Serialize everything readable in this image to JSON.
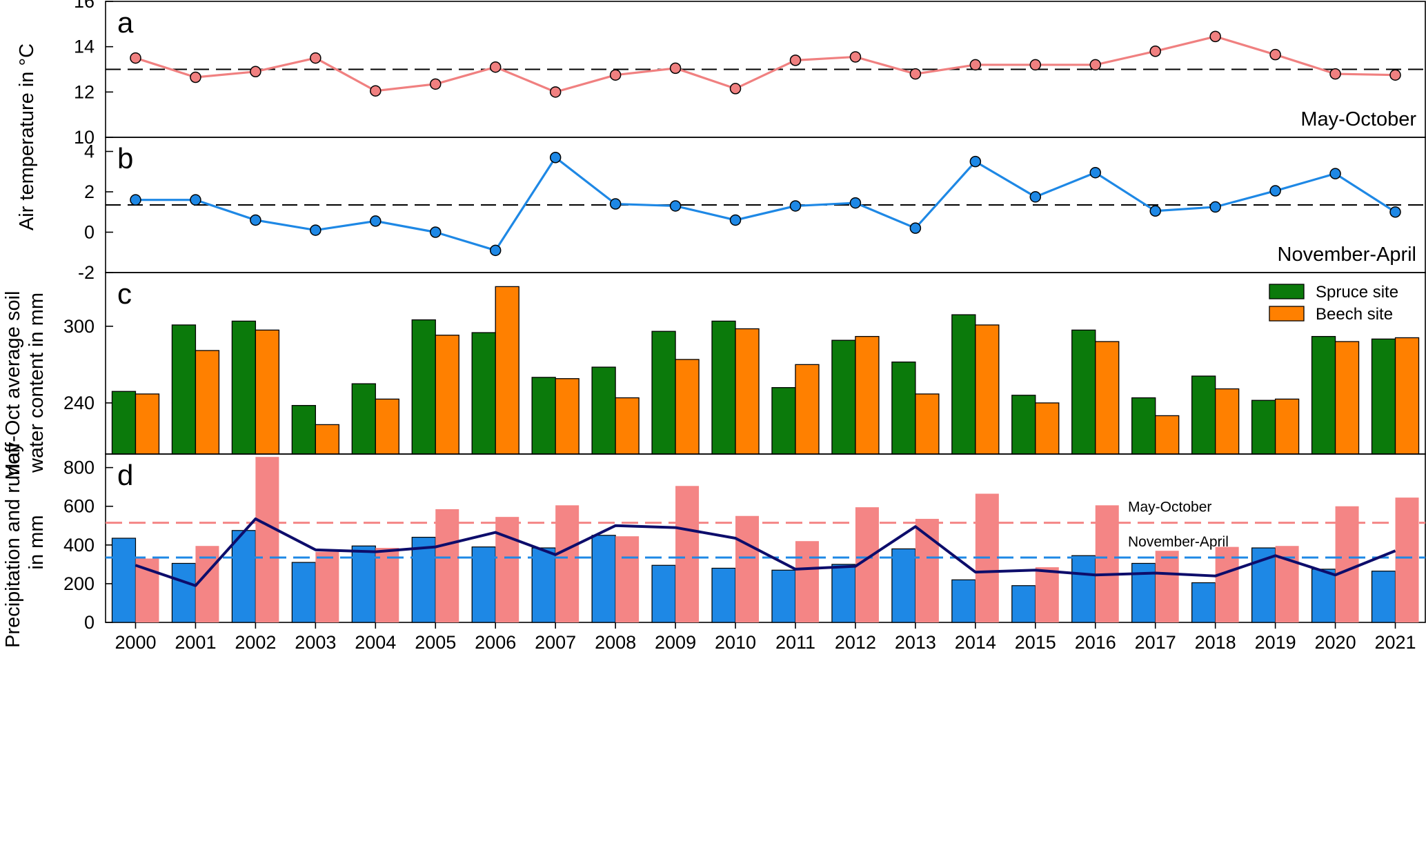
{
  "years": [
    "2000",
    "2001",
    "2002",
    "2003",
    "2004",
    "2005",
    "2006",
    "2007",
    "2008",
    "2009",
    "2010",
    "2011",
    "2012",
    "2013",
    "2014",
    "2015",
    "2016",
    "2017",
    "2018",
    "2019",
    "2020",
    "2021"
  ],
  "y_axis_title_ab": "Air temperature in °C",
  "chart_data": [
    {
      "panel": "a",
      "type": "line",
      "annotation": "May-October",
      "ylim": [
        10,
        16
      ],
      "yticks": [
        "10",
        "12",
        "14",
        "16"
      ],
      "color": "#f08080",
      "reference_line": 13.0,
      "series": [
        {
          "values": [
            13.5,
            12.65,
            12.9,
            13.5,
            12.05,
            12.35,
            13.1,
            12.0,
            12.75,
            13.05,
            12.15,
            13.4,
            13.55,
            12.8,
            13.2,
            13.2,
            13.2,
            13.8,
            14.45,
            13.65,
            12.8,
            12.75
          ]
        }
      ]
    },
    {
      "panel": "b",
      "type": "line",
      "annotation": "November-April",
      "ylim": [
        -2,
        4.7
      ],
      "yticks": [
        "-2",
        "0",
        "2",
        "4"
      ],
      "color": "#1e88e5",
      "reference_line": 1.35,
      "series": [
        {
          "values": [
            1.6,
            1.6,
            0.6,
            0.1,
            0.55,
            0.0,
            -0.9,
            3.7,
            1.4,
            1.3,
            0.6,
            1.3,
            1.45,
            0.2,
            3.5,
            1.75,
            2.95,
            1.05,
            1.25,
            2.05,
            2.9,
            1.0
          ]
        }
      ]
    },
    {
      "panel": "c",
      "type": "bar",
      "ylabel": "May-Oct average soil water content in mm",
      "ylabel_lines": [
        "May-Oct average soil",
        "water content in mm"
      ],
      "ylim": [
        200,
        342
      ],
      "yticks": [
        "240",
        "300"
      ],
      "legend_position": "top-right",
      "series": [
        {
          "name": "Spruce site",
          "color": "#0b7a0b",
          "values": [
            249,
            301,
            304,
            238,
            255,
            305,
            295,
            260,
            268,
            296,
            304,
            252,
            289,
            272,
            309,
            246,
            297,
            244,
            261,
            242,
            292,
            290
          ]
        },
        {
          "name": "Beech site",
          "color": "#ff8000",
          "values": [
            247,
            281,
            297,
            223,
            243,
            293,
            331,
            259,
            244,
            274,
            298,
            270,
            292,
            247,
            301,
            240,
            288,
            230,
            251,
            243,
            288,
            291
          ]
        }
      ]
    },
    {
      "panel": "d",
      "type": "bar",
      "ylabel": "Precipitation and runoff in mm",
      "ylabel_lines": [
        "Precipitation and runoff",
        "in mm"
      ],
      "ylim": [
        0,
        870
      ],
      "yticks": [
        "0",
        "200",
        "400",
        "600",
        "800"
      ],
      "series": [
        {
          "color": "#1e88e5",
          "values": [
            435,
            305,
            475,
            310,
            395,
            440,
            390,
            385,
            450,
            295,
            280,
            270,
            300,
            380,
            220,
            190,
            345,
            305,
            205,
            385,
            275,
            265
          ]
        },
        {
          "color": "#f48585",
          "values": [
            330,
            395,
            855,
            365,
            385,
            585,
            545,
            605,
            445,
            705,
            550,
            420,
            595,
            535,
            665,
            285,
            605,
            370,
            390,
            395,
            600,
            645
          ]
        },
        {
          "type": "line",
          "color": "#0d0d6b",
          "values": [
            295,
            190,
            535,
            375,
            365,
            390,
            465,
            350,
            500,
            490,
            435,
            275,
            290,
            495,
            260,
            270,
            245,
            255,
            240,
            345,
            245,
            370
          ]
        }
      ],
      "reference_lines": [
        {
          "label": "May-October",
          "value": 515,
          "color": "#f48585"
        },
        {
          "label": "November-April",
          "value": 335,
          "color": "#1e88e5"
        }
      ]
    }
  ]
}
